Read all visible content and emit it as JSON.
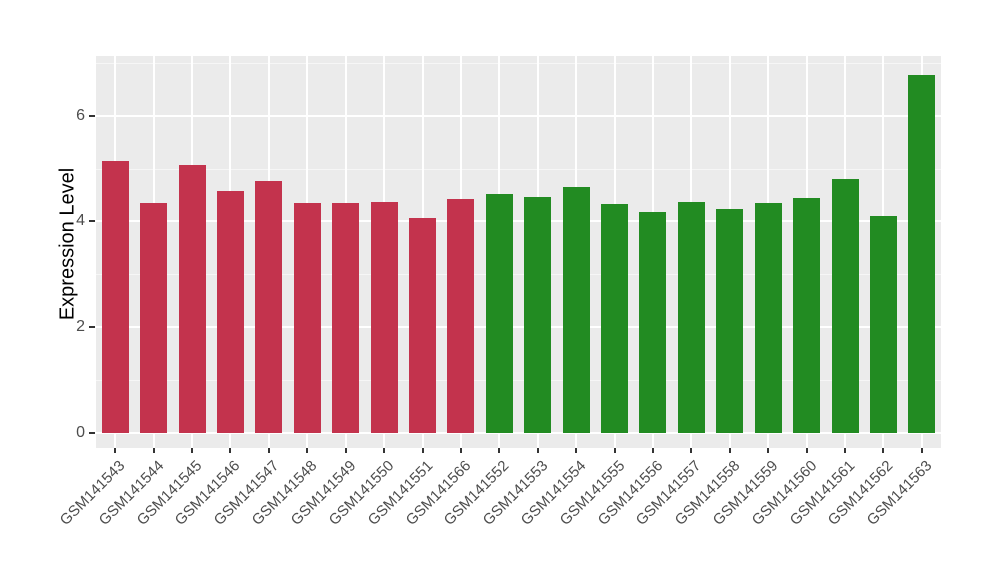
{
  "figure": {
    "background_color": "#FFFFFF"
  },
  "chart_data": {
    "type": "bar",
    "title": "",
    "xlabel": "",
    "ylabel": "Expression Level",
    "ylim": [
      0,
      7.1
    ],
    "y_tick_values": [
      0,
      2,
      4,
      6
    ],
    "y_tick_labels": [
      "0",
      "2",
      "4",
      "6"
    ],
    "y_minor_gridlines": [
      1,
      3,
      5,
      7
    ],
    "grid": true,
    "legend_position": "none",
    "panel_background_color": "#EBEBEB",
    "gridline_color": "#FFFFFF",
    "tick_mark_color": "#333333",
    "axis_text_color": "#4D4D4D",
    "group_colors": {
      "left_group": "#C3334D",
      "right_group": "#228B22"
    },
    "categories": [
      "GSM141543",
      "GSM141544",
      "GSM141545",
      "GSM141546",
      "GSM141547",
      "GSM141548",
      "GSM141549",
      "GSM141550",
      "GSM141551",
      "GSM141566",
      "GSM141552",
      "GSM141553",
      "GSM141554",
      "GSM141555",
      "GSM141556",
      "GSM141557",
      "GSM141558",
      "GSM141559",
      "GSM141560",
      "GSM141561",
      "GSM141562",
      "GSM141563"
    ],
    "bars": [
      {
        "label": "GSM141543",
        "value": 5.14,
        "color": "#C3334D"
      },
      {
        "label": "GSM141544",
        "value": 4.34,
        "color": "#C3334D"
      },
      {
        "label": "GSM141545",
        "value": 5.07,
        "color": "#C3334D"
      },
      {
        "label": "GSM141546",
        "value": 4.57,
        "color": "#C3334D"
      },
      {
        "label": "GSM141547",
        "value": 4.76,
        "color": "#C3334D"
      },
      {
        "label": "GSM141548",
        "value": 4.35,
        "color": "#C3334D"
      },
      {
        "label": "GSM141549",
        "value": 4.35,
        "color": "#C3334D"
      },
      {
        "label": "GSM141550",
        "value": 4.37,
        "color": "#C3334D"
      },
      {
        "label": "GSM141551",
        "value": 4.07,
        "color": "#C3334D"
      },
      {
        "label": "GSM141566",
        "value": 4.43,
        "color": "#C3334D"
      },
      {
        "label": "GSM141552",
        "value": 4.52,
        "color": "#228B22"
      },
      {
        "label": "GSM141553",
        "value": 4.47,
        "color": "#228B22"
      },
      {
        "label": "GSM141554",
        "value": 4.66,
        "color": "#228B22"
      },
      {
        "label": "GSM141555",
        "value": 4.33,
        "color": "#228B22"
      },
      {
        "label": "GSM141556",
        "value": 4.17,
        "color": "#228B22"
      },
      {
        "label": "GSM141557",
        "value": 4.36,
        "color": "#228B22"
      },
      {
        "label": "GSM141558",
        "value": 4.23,
        "color": "#228B22"
      },
      {
        "label": "GSM141559",
        "value": 4.34,
        "color": "#228B22"
      },
      {
        "label": "GSM141560",
        "value": 4.45,
        "color": "#228B22"
      },
      {
        "label": "GSM141561",
        "value": 4.81,
        "color": "#228B22"
      },
      {
        "label": "GSM141562",
        "value": 4.11,
        "color": "#228B22"
      },
      {
        "label": "GSM141563",
        "value": 6.77,
        "color": "#228B22"
      }
    ]
  }
}
